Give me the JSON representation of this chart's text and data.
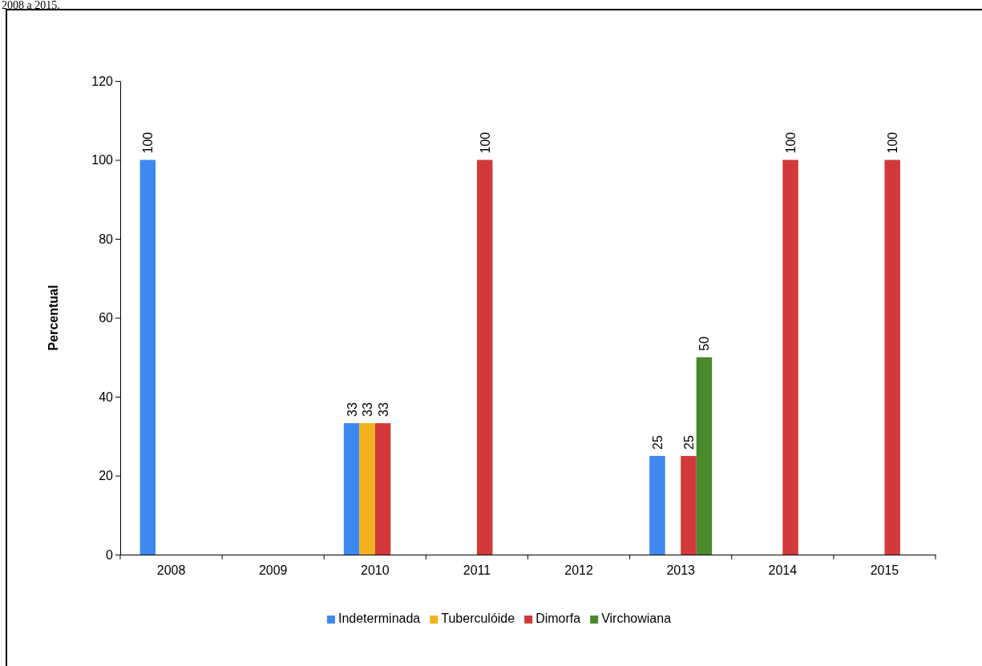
{
  "chart_data": {
    "type": "bar",
    "ylabel": "Percentual",
    "annotations": [
      "2008 a 2015."
    ],
    "categories": [
      "2008",
      "2009",
      "2010",
      "2011",
      "2012",
      "2013",
      "2014",
      "2015"
    ],
    "series": [
      {
        "name": "Indeterminada",
        "color": "#3f88f0",
        "values": [
          100,
          0,
          33.3,
          0,
          0,
          25,
          0,
          0
        ],
        "value_labels": [
          "100",
          null,
          "33",
          null,
          null,
          "25",
          null,
          null
        ]
      },
      {
        "name": "Tuberculóide",
        "color": "#f2b21d",
        "values": [
          0,
          0,
          33.3,
          0,
          0,
          0,
          0,
          0
        ],
        "value_labels": [
          null,
          null,
          "33",
          null,
          null,
          null,
          null,
          null
        ]
      },
      {
        "name": "Dimorfa",
        "color": "#d23a3a",
        "values": [
          0,
          0,
          33.3,
          100,
          0,
          25,
          100,
          100
        ],
        "value_labels": [
          null,
          null,
          "33",
          "100",
          null,
          "25",
          "100",
          "100"
        ]
      },
      {
        "name": "Virchowiana",
        "color": "#4a8a2c",
        "values": [
          0,
          0,
          0,
          0,
          0,
          50,
          0,
          0
        ],
        "value_labels": [
          null,
          null,
          null,
          null,
          null,
          "50",
          null,
          null
        ]
      }
    ],
    "ylim": [
      0,
      120
    ],
    "yticks": [
      0,
      20,
      40,
      60,
      80,
      100,
      120
    ],
    "legend": "bottom"
  }
}
